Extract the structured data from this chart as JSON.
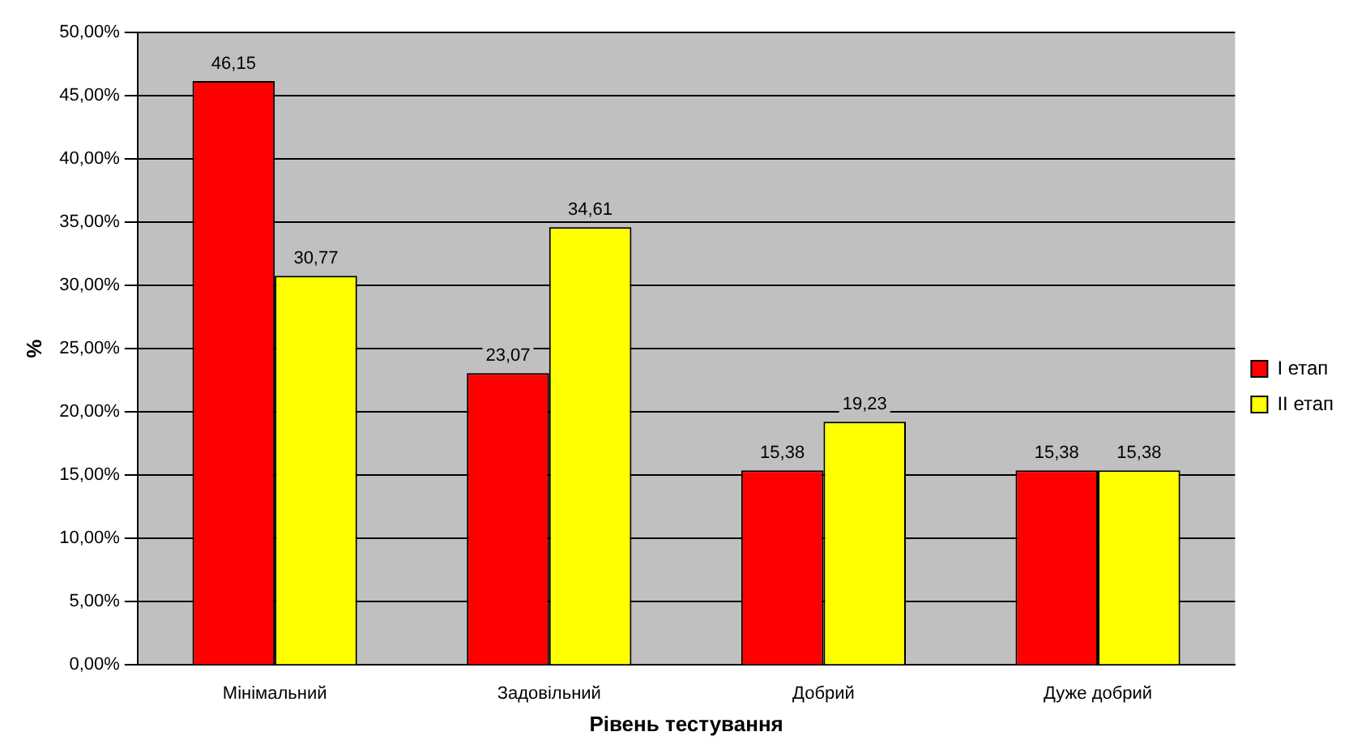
{
  "chart_data": {
    "type": "bar",
    "xlabel": "Рівень тестування",
    "ylabel": "%",
    "categories": [
      "Мінімальний",
      "Задовільний",
      "Добрий",
      "Дуже добрий"
    ],
    "series": [
      {
        "name": "I етап",
        "color": "#ff0000",
        "values": [
          46.15,
          23.07,
          15.38,
          15.38
        ],
        "value_labels": [
          "46,15",
          "23,07",
          "15,38",
          "15,38"
        ]
      },
      {
        "name": "II етап",
        "color": "#ffff00",
        "values": [
          30.77,
          34.61,
          19.23,
          15.38
        ],
        "value_labels": [
          "30,77",
          "34,61",
          "19,23",
          "15,38"
        ]
      }
    ],
    "ylim": [
      0,
      50
    ],
    "yticks": [
      {
        "value": 0,
        "label": "0,00%"
      },
      {
        "value": 5,
        "label": "5,00%"
      },
      {
        "value": 10,
        "label": "10,00%"
      },
      {
        "value": 15,
        "label": "15,00%"
      },
      {
        "value": 20,
        "label": "20,00%"
      },
      {
        "value": 25,
        "label": "25,00%"
      },
      {
        "value": 30,
        "label": "30,00%"
      },
      {
        "value": 35,
        "label": "35,00%"
      },
      {
        "value": 40,
        "label": "40,00%"
      },
      {
        "value": 45,
        "label": "45,00%"
      },
      {
        "value": 50,
        "label": "50,00%"
      }
    ],
    "grid": "y",
    "legend": "right"
  }
}
